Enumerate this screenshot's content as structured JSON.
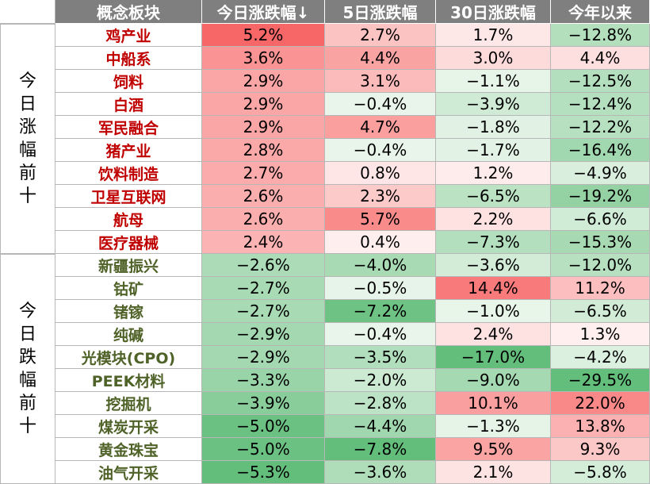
{
  "chart_data": {
    "type": "table",
    "columns": [
      "概念板块",
      "今日涨跌幅↓",
      "5日涨跌幅",
      "30日涨跌幅",
      "今年以来"
    ],
    "groups": [
      {
        "label": "今日涨幅前十",
        "name_color": "#c00000",
        "rows": [
          {
            "name": "鸡产业",
            "values": [
              "5.2%",
              "2.7%",
              "1.7%",
              "−12.8%"
            ]
          },
          {
            "name": "中船系",
            "values": [
              "3.6%",
              "4.4%",
              "3.0%",
              "4.4%"
            ]
          },
          {
            "name": "饲料",
            "values": [
              "2.9%",
              "3.1%",
              "−1.1%",
              "−12.5%"
            ]
          },
          {
            "name": "白酒",
            "values": [
              "2.9%",
              "−0.4%",
              "−3.9%",
              "−12.4%"
            ]
          },
          {
            "name": "军民融合",
            "values": [
              "2.9%",
              "4.7%",
              "−1.8%",
              "−12.2%"
            ]
          },
          {
            "name": "猪产业",
            "values": [
              "2.8%",
              "−0.4%",
              "−1.7%",
              "−16.4%"
            ]
          },
          {
            "name": "饮料制造",
            "values": [
              "2.7%",
              "0.8%",
              "1.2%",
              "−4.9%"
            ]
          },
          {
            "name": "卫星互联网",
            "values": [
              "2.6%",
              "2.3%",
              "−6.5%",
              "−19.2%"
            ]
          },
          {
            "name": "航母",
            "values": [
              "2.6%",
              "5.7%",
              "2.2%",
              "−6.6%"
            ]
          },
          {
            "name": "医疗器械",
            "values": [
              "2.4%",
              "0.4%",
              "−7.3%",
              "−15.3%"
            ]
          }
        ]
      },
      {
        "label": "今日跌幅前十",
        "name_color": "#4f6228",
        "rows": [
          {
            "name": "新疆振兴",
            "values": [
              "−2.6%",
              "−4.0%",
              "−3.6%",
              "−12.0%"
            ]
          },
          {
            "name": "钴矿",
            "values": [
              "−2.7%",
              "−0.5%",
              "14.4%",
              "11.2%"
            ]
          },
          {
            "name": "锗镓",
            "values": [
              "−2.7%",
              "−7.2%",
              "−1.0%",
              "−6.5%"
            ]
          },
          {
            "name": "纯碱",
            "values": [
              "−2.9%",
              "−0.4%",
              "2.4%",
              "1.3%"
            ]
          },
          {
            "name": "光模块(CPO)",
            "values": [
              "−2.9%",
              "−3.5%",
              "−17.0%",
              "−4.2%"
            ]
          },
          {
            "name": "PEEK材料",
            "values": [
              "−3.3%",
              "−2.0%",
              "−9.0%",
              "−29.5%"
            ]
          },
          {
            "name": "挖掘机",
            "values": [
              "−3.9%",
              "−2.8%",
              "10.1%",
              "22.0%"
            ]
          },
          {
            "name": "煤炭开采",
            "values": [
              "−5.0%",
              "−4.4%",
              "−1.3%",
              "13.8%"
            ]
          },
          {
            "name": "黄金珠宝",
            "values": [
              "−5.0%",
              "−7.8%",
              "9.5%",
              "9.3%"
            ]
          },
          {
            "name": "油气开采",
            "values": [
              "−5.3%",
              "−3.6%",
              "2.1%",
              "−5.8%"
            ]
          }
        ]
      }
    ]
  }
}
